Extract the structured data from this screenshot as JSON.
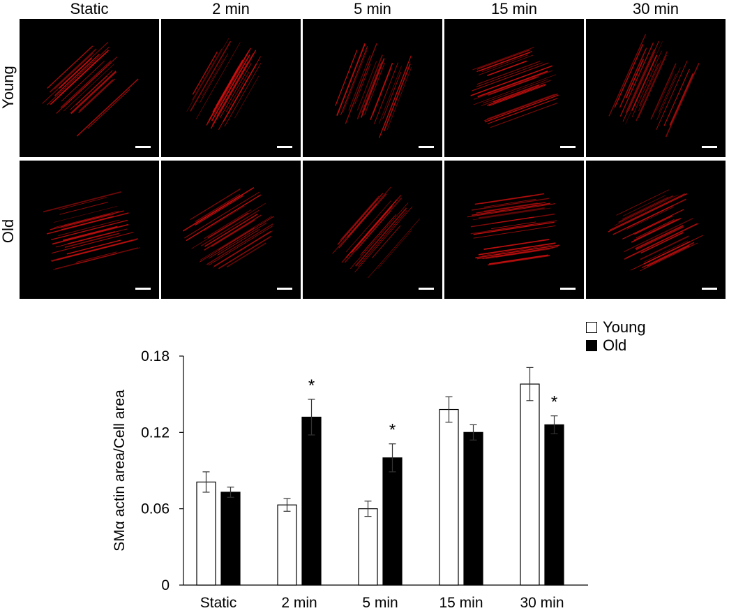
{
  "micrographs": {
    "columns": [
      "Static",
      "2 min",
      "5 min",
      "15 min",
      "30 min"
    ],
    "rows": [
      "Young",
      "Old"
    ],
    "stain_color": "#d01010"
  },
  "chart_data": {
    "type": "bar",
    "categories": [
      "Static",
      "2 min",
      "5 min",
      "15 min",
      "30 min"
    ],
    "series": [
      {
        "name": "Young",
        "values": [
          0.081,
          0.063,
          0.06,
          0.138,
          0.158
        ],
        "errors": [
          0.008,
          0.005,
          0.006,
          0.01,
          0.013
        ],
        "color": "#ffffff"
      },
      {
        "name": "Old",
        "values": [
          0.073,
          0.132,
          0.1,
          0.12,
          0.126
        ],
        "errors": [
          0.004,
          0.014,
          0.011,
          0.006,
          0.007
        ],
        "color": "#000000"
      }
    ],
    "significance": [
      {
        "series": "Old",
        "category": "2 min",
        "text": "*"
      },
      {
        "series": "Old",
        "category": "5 min",
        "text": "*"
      },
      {
        "series": "Old",
        "category": "30 min",
        "text": "*"
      }
    ],
    "ylabel": "SMα actin area/Cell area",
    "xlabel": "",
    "ylim": [
      0,
      0.18
    ],
    "yticks": [
      "0",
      "0.06",
      "0.12",
      "0.18"
    ],
    "ytick_values": [
      0,
      0.06,
      0.12,
      0.18
    ],
    "legend_position": "top-right",
    "grid": false
  }
}
